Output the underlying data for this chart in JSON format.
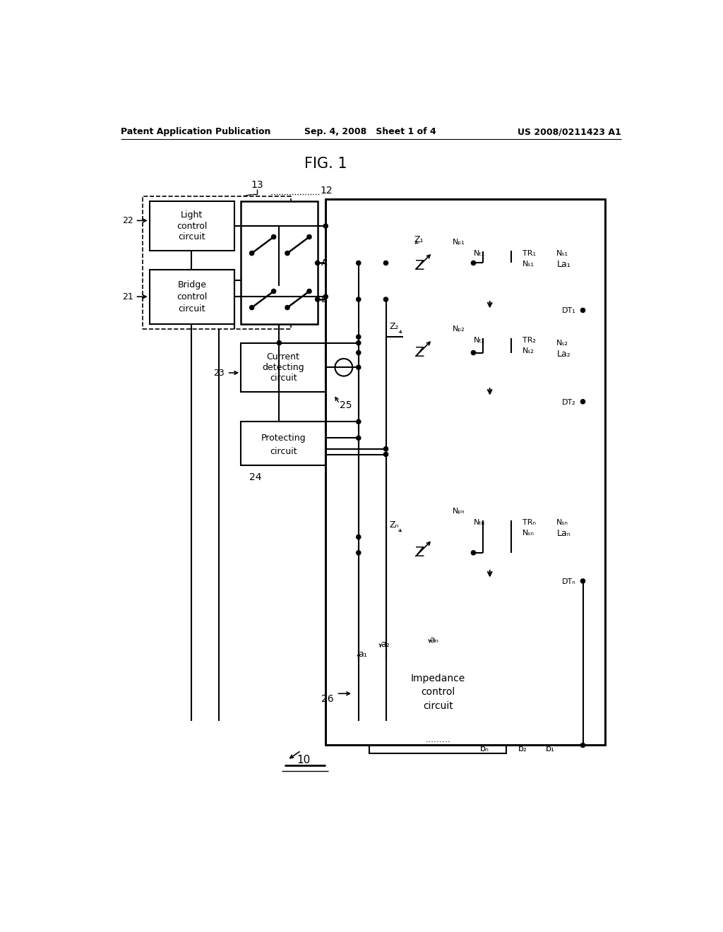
{
  "header_left": "Patent Application Publication",
  "header_center": "Sep. 4, 2008   Sheet 1 of 4",
  "header_right": "US 2008/0211423 A1",
  "bg_color": "#ffffff"
}
